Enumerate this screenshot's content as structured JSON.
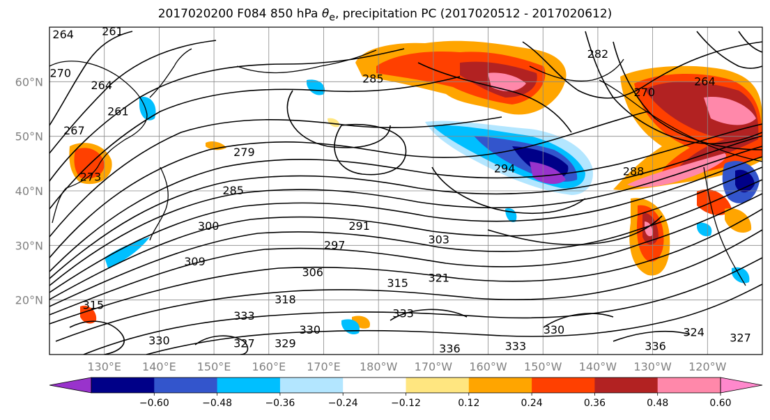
{
  "title_main": "2017020200 F084 850 hPa ",
  "title_theta": "θ",
  "title_sub": "e",
  "title_rest": ", precipitation PC (2017020512 - 2017020612)",
  "lat_ticks": [
    {
      "lat": 60,
      "label": "60°N"
    },
    {
      "lat": 50,
      "label": "50°N"
    },
    {
      "lat": 40,
      "label": "40°N"
    },
    {
      "lat": 30,
      "label": "30°N"
    },
    {
      "lat": 20,
      "label": "20°N"
    }
  ],
  "lon_ticks": [
    {
      "lon": 130,
      "label": "130°E"
    },
    {
      "lon": 140,
      "label": "140°E"
    },
    {
      "lon": 150,
      "label": "150°E"
    },
    {
      "lon": 160,
      "label": "160°E"
    },
    {
      "lon": 170,
      "label": "170°E"
    },
    {
      "lon": 180,
      "label": "180°W"
    },
    {
      "lon": 190,
      "label": "170°W"
    },
    {
      "lon": 200,
      "label": "160°W"
    },
    {
      "lon": 210,
      "label": "150°W"
    },
    {
      "lon": 220,
      "label": "140°W"
    },
    {
      "lon": 230,
      "label": "130°W"
    },
    {
      "lon": 240,
      "label": "120°W"
    }
  ],
  "extent": {
    "lon": [
      120,
      250
    ],
    "lat": [
      10,
      70
    ]
  },
  "colorbar": {
    "colors": [
      "#9933cc",
      "#000088",
      "#3355cc",
      "#00bfff",
      "#b3e6ff",
      "#ffffff",
      "#ffe680",
      "#ffa500",
      "#ff4000",
      "#b22222",
      "#ff88aa",
      "#ff88cc"
    ],
    "levels": [
      "-0.60",
      "-0.48",
      "-0.36",
      "-0.24",
      "-0.12",
      "0.12",
      "0.24",
      "0.36",
      "0.48",
      "0.60"
    ]
  },
  "contour_labels": [
    {
      "text": "264",
      "lon": 122.5,
      "lat": 68.6
    },
    {
      "text": "261",
      "lon": 131.5,
      "lat": 69.2
    },
    {
      "text": "270",
      "lon": 122.0,
      "lat": 61.5
    },
    {
      "text": "264",
      "lon": 129.5,
      "lat": 59.3
    },
    {
      "text": "261",
      "lon": 132.5,
      "lat": 54.5
    },
    {
      "text": "267",
      "lon": 124.5,
      "lat": 51.0
    },
    {
      "text": "273",
      "lon": 127.5,
      "lat": 42.5
    },
    {
      "text": "279",
      "lon": 155.5,
      "lat": 47.0
    },
    {
      "text": "285",
      "lon": 179.0,
      "lat": 60.5
    },
    {
      "text": "282",
      "lon": 220.0,
      "lat": 65.0
    },
    {
      "text": "270",
      "lon": 228.5,
      "lat": 58.0
    },
    {
      "text": "264",
      "lon": 239.5,
      "lat": 60.0
    },
    {
      "text": "294",
      "lon": 203.0,
      "lat": 44.0
    },
    {
      "text": "288",
      "lon": 226.5,
      "lat": 43.5
    },
    {
      "text": "285",
      "lon": 153.5,
      "lat": 40.0
    },
    {
      "text": "300",
      "lon": 149.0,
      "lat": 33.5
    },
    {
      "text": "291",
      "lon": 176.5,
      "lat": 33.5
    },
    {
      "text": "297",
      "lon": 172.0,
      "lat": 30.0
    },
    {
      "text": "303",
      "lon": 191.0,
      "lat": 31.0
    },
    {
      "text": "309",
      "lon": 146.5,
      "lat": 27.0
    },
    {
      "text": "306",
      "lon": 168.0,
      "lat": 25.0
    },
    {
      "text": "315",
      "lon": 183.5,
      "lat": 23.0
    },
    {
      "text": "321",
      "lon": 191.0,
      "lat": 24.0
    },
    {
      "text": "318",
      "lon": 163.0,
      "lat": 20.0
    },
    {
      "text": "333",
      "lon": 155.5,
      "lat": 17.0
    },
    {
      "text": "333",
      "lon": 184.5,
      "lat": 17.5
    },
    {
      "text": "330",
      "lon": 167.5,
      "lat": 14.5
    },
    {
      "text": "330",
      "lon": 140.0,
      "lat": 12.5
    },
    {
      "text": "327",
      "lon": 155.5,
      "lat": 12.0
    },
    {
      "text": "329",
      "lon": 163.0,
      "lat": 12.0
    },
    {
      "text": "330",
      "lon": 212.0,
      "lat": 14.5
    },
    {
      "text": "333",
      "lon": 205.0,
      "lat": 11.5
    },
    {
      "text": "336",
      "lon": 193.0,
      "lat": 11.0
    },
    {
      "text": "336",
      "lon": 230.5,
      "lat": 11.5
    },
    {
      "text": "327",
      "lon": 246.0,
      "lat": 13.0
    },
    {
      "text": "324",
      "lon": 237.5,
      "lat": 14.0
    },
    {
      "text": "315",
      "lon": 128.0,
      "lat": 19.0
    }
  ]
}
